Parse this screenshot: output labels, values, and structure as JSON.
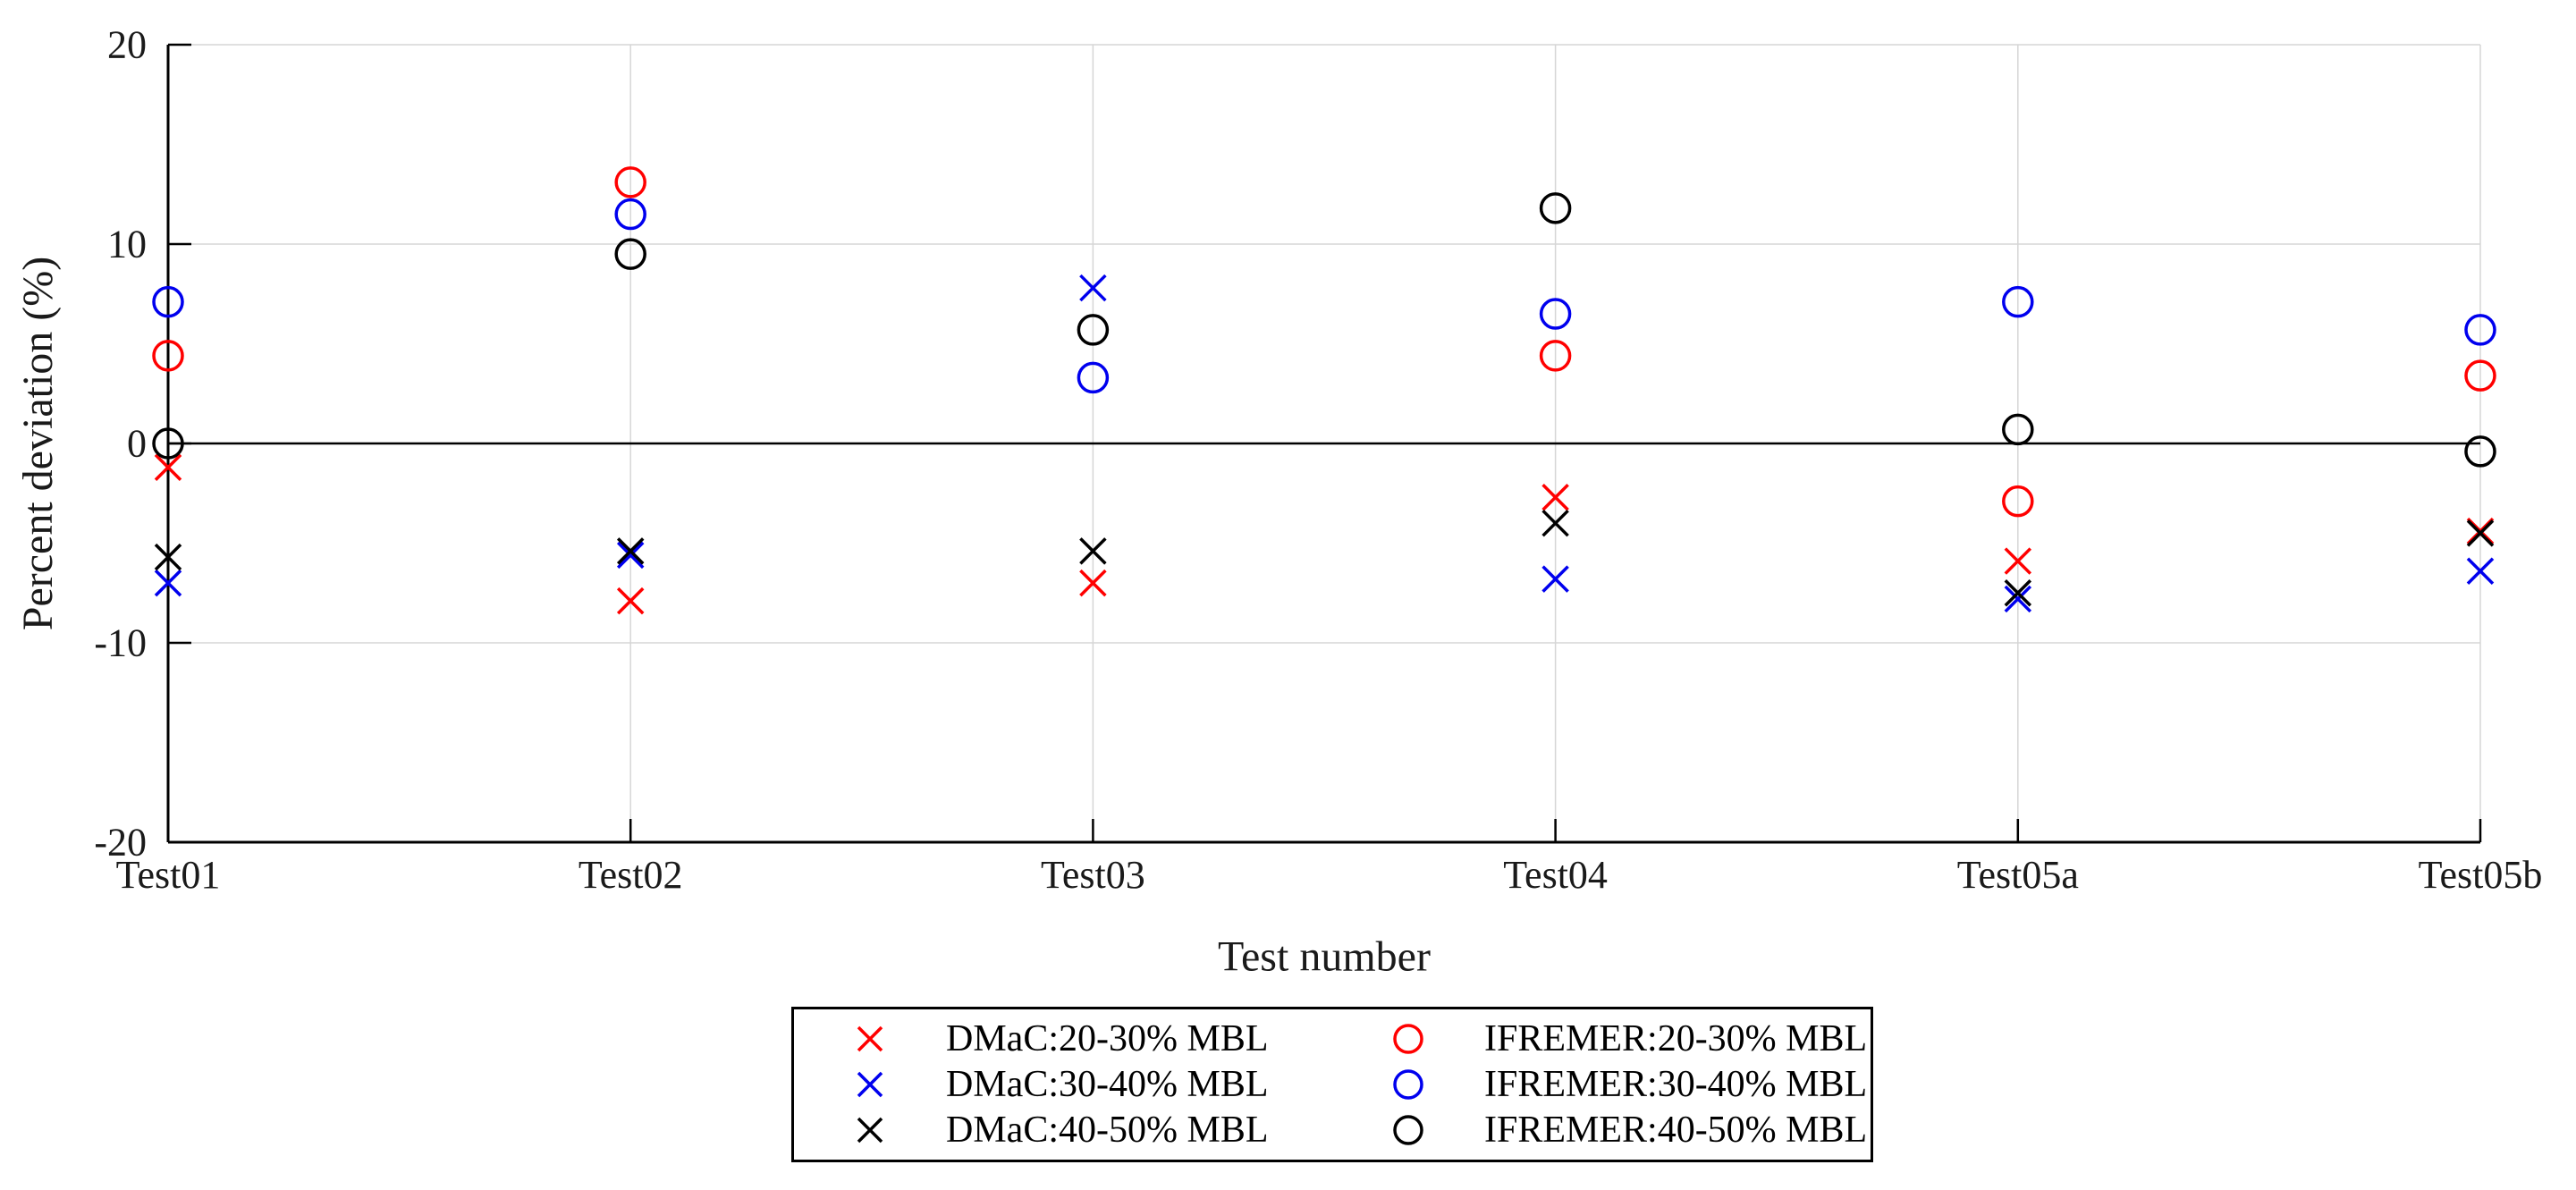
{
  "figure": {
    "background": "#ffffff"
  },
  "chart_data": {
    "type": "scatter",
    "title": "",
    "xlabel": "Test number",
    "ylabel": "Percent deviation (%)",
    "categories": [
      "Test01",
      "Test02",
      "Test03",
      "Test04",
      "Test05a",
      "Test05b"
    ],
    "ylim": [
      -20,
      20
    ],
    "yticks": [
      20,
      10,
      0,
      -10,
      -20
    ],
    "grid": true,
    "zero_line": true,
    "legend_position": "below-center",
    "legend_columns": 2,
    "series": [
      {
        "name": "DMaC:20-30% MBL",
        "marker": "x",
        "color": "#ff0000",
        "values": [
          -1.2,
          -7.9,
          -7.0,
          -2.7,
          -5.9,
          -4.4
        ]
      },
      {
        "name": "DMaC:30-40% MBL",
        "marker": "x",
        "color": "#0000ee",
        "values": [
          -7.0,
          -5.6,
          7.8,
          -6.8,
          -7.8,
          -6.4
        ]
      },
      {
        "name": "DMaC:40-50% MBL",
        "marker": "x",
        "color": "#000000",
        "values": [
          -5.7,
          -5.4,
          -5.4,
          -4.0,
          -7.5,
          -4.5
        ]
      },
      {
        "name": "IFREMER:20-30% MBL",
        "marker": "o",
        "color": "#ff0000",
        "values": [
          4.4,
          13.1,
          null,
          4.4,
          -2.9,
          3.4
        ]
      },
      {
        "name": "IFREMER:30-40% MBL",
        "marker": "o",
        "color": "#0000ee",
        "values": [
          7.1,
          11.5,
          3.3,
          6.5,
          7.1,
          5.7
        ]
      },
      {
        "name": "IFREMER:40-50% MBL",
        "marker": "o",
        "color": "#000000",
        "values": [
          0.0,
          9.5,
          5.7,
          11.8,
          0.7,
          -0.4
        ]
      }
    ],
    "colors": {
      "grid": "#d6d6d6",
      "axis": "#000000",
      "zero_line": "#000000",
      "tick_label": "#1a1a1a",
      "background": "#ffffff"
    }
  }
}
